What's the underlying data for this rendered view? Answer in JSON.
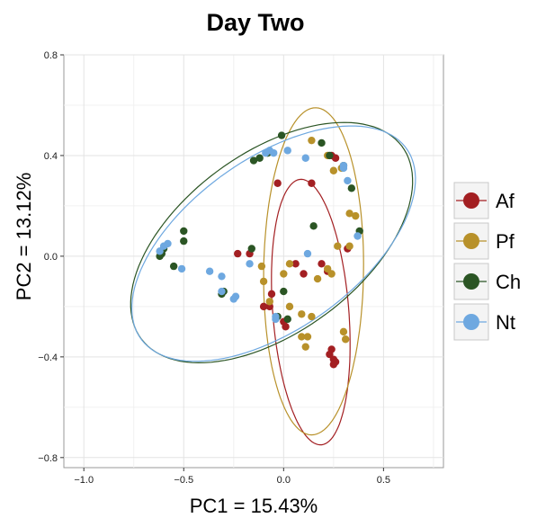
{
  "chart_data": {
    "type": "scatter",
    "title": "Day Two",
    "xlabel": "PC1 = 15.43%",
    "ylabel": "PC2 = 13.12%",
    "xlim": [
      -1.1,
      0.8
    ],
    "ylim": [
      -0.84,
      0.8
    ],
    "x_ticks": [
      -1.0,
      -0.5,
      0.0,
      0.5
    ],
    "x_tick_labels": [
      "−1.0",
      "−0.5",
      "0.0",
      "0.5"
    ],
    "y_ticks": [
      -0.8,
      -0.4,
      0.0,
      0.4,
      0.8
    ],
    "y_tick_labels": [
      "−0.8",
      "−0.4",
      "0.0",
      "0.4",
      "0.8"
    ],
    "grid": true,
    "legend_position": "right",
    "series": [
      {
        "name": "Af",
        "color": "#a31f22",
        "points": [
          [
            -0.03,
            0.29
          ],
          [
            0.14,
            0.29
          ],
          [
            0.26,
            0.39
          ],
          [
            -0.23,
            0.01
          ],
          [
            -0.17,
            0.01
          ],
          [
            0.06,
            -0.03
          ],
          [
            0.1,
            -0.07
          ],
          [
            0.19,
            -0.03
          ],
          [
            0.22,
            -0.06
          ],
          [
            0.32,
            0.03
          ],
          [
            -0.06,
            -0.15
          ],
          [
            -0.07,
            -0.2
          ],
          [
            -0.1,
            -0.2
          ],
          [
            0.0,
            -0.26
          ],
          [
            0.01,
            -0.28
          ],
          [
            0.24,
            -0.37
          ],
          [
            0.23,
            -0.39
          ],
          [
            0.25,
            -0.41
          ],
          [
            0.26,
            -0.42
          ],
          [
            0.25,
            -0.43
          ],
          [
            0.24,
            0.4
          ]
        ]
      },
      {
        "name": "Pf",
        "color": "#b8912a",
        "points": [
          [
            0.14,
            0.46
          ],
          [
            0.25,
            0.34
          ],
          [
            0.29,
            0.35
          ],
          [
            0.22,
            0.4
          ],
          [
            0.33,
            0.17
          ],
          [
            0.36,
            0.16
          ],
          [
            0.27,
            0.04
          ],
          [
            0.33,
            0.04
          ],
          [
            -0.11,
            -0.04
          ],
          [
            0.03,
            -0.03
          ],
          [
            0.0,
            -0.07
          ],
          [
            -0.1,
            -0.1
          ],
          [
            0.22,
            -0.05
          ],
          [
            0.24,
            -0.07
          ],
          [
            0.17,
            -0.09
          ],
          [
            -0.07,
            -0.18
          ],
          [
            0.03,
            -0.2
          ],
          [
            0.09,
            -0.23
          ],
          [
            0.14,
            -0.24
          ],
          [
            0.09,
            -0.32
          ],
          [
            0.12,
            -0.32
          ],
          [
            0.3,
            -0.3
          ],
          [
            0.31,
            -0.33
          ],
          [
            0.11,
            -0.36
          ]
        ]
      },
      {
        "name": "Ch",
        "color": "#2b5524",
        "points": [
          [
            -0.01,
            0.48
          ],
          [
            0.19,
            0.45
          ],
          [
            -0.12,
            0.39
          ],
          [
            -0.08,
            0.41
          ],
          [
            -0.15,
            0.38
          ],
          [
            0.23,
            0.4
          ],
          [
            0.34,
            0.27
          ],
          [
            0.3,
            0.36
          ],
          [
            0.15,
            0.12
          ],
          [
            0.38,
            0.1
          ],
          [
            -0.16,
            0.03
          ],
          [
            -0.5,
            0.1
          ],
          [
            -0.5,
            0.06
          ],
          [
            -0.62,
            0.0
          ],
          [
            -0.6,
            0.03
          ],
          [
            -0.55,
            -0.04
          ],
          [
            -0.31,
            -0.15
          ],
          [
            -0.3,
            -0.14
          ],
          [
            0.0,
            -0.14
          ],
          [
            -0.03,
            -0.24
          ],
          [
            0.02,
            -0.25
          ],
          [
            -0.61,
            0.01
          ]
        ]
      },
      {
        "name": "Nt",
        "color": "#6ea8e0",
        "points": [
          [
            -0.09,
            0.41
          ],
          [
            -0.07,
            0.42
          ],
          [
            0.02,
            0.42
          ],
          [
            0.11,
            0.39
          ],
          [
            0.3,
            0.35
          ],
          [
            0.32,
            0.3
          ],
          [
            0.37,
            0.08
          ],
          [
            -0.17,
            -0.03
          ],
          [
            0.12,
            0.01
          ],
          [
            -0.6,
            0.04
          ],
          [
            -0.62,
            0.02
          ],
          [
            -0.58,
            0.05
          ],
          [
            -0.51,
            -0.05
          ],
          [
            -0.37,
            -0.06
          ],
          [
            -0.31,
            -0.08
          ],
          [
            -0.31,
            -0.14
          ],
          [
            -0.25,
            -0.17
          ],
          [
            -0.24,
            -0.16
          ],
          [
            -0.04,
            -0.24
          ],
          [
            -0.04,
            -0.25
          ],
          [
            0.3,
            0.36
          ],
          [
            -0.05,
            0.41
          ]
        ]
      }
    ],
    "ellipses": [
      {
        "series": "Af",
        "cx": 0.136,
        "cy": -0.222,
        "rx": 0.19,
        "ry": 0.53,
        "angle": 6
      },
      {
        "series": "Pf",
        "cx": 0.15,
        "cy": -0.06,
        "rx": 0.25,
        "ry": 0.65,
        "angle": -1
      },
      {
        "series": "Ch",
        "cx": -0.06,
        "cy": 0.054,
        "rx": 0.763,
        "ry": 0.379,
        "angle": 26
      },
      {
        "series": "Nt",
        "cx": -0.05,
        "cy": 0.05,
        "rx": 0.77,
        "ry": 0.36,
        "angle": 26
      }
    ]
  }
}
